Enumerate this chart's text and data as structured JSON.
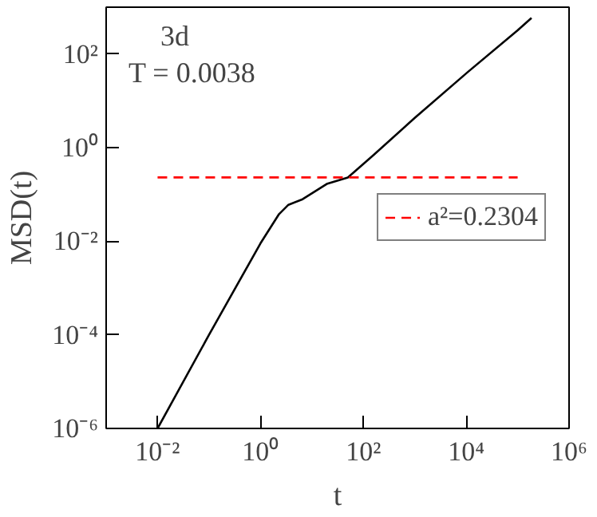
{
  "chart_data": {
    "type": "line",
    "xlabel": "t",
    "ylabel": "MSD(t)",
    "log": "xy",
    "xlim": [
      0.001,
      1000000
    ],
    "ylim": [
      1e-06,
      1000
    ],
    "xticks": [
      {
        "value": 0.01,
        "label": "10⁻²"
      },
      {
        "value": 1,
        "label": "10⁰"
      },
      {
        "value": 100,
        "label": "10²"
      },
      {
        "value": 10000,
        "label": "10⁴"
      },
      {
        "value": 1000000,
        "label": "10⁶"
      }
    ],
    "yticks": [
      {
        "value": 1e-06,
        "label": "10⁻⁶"
      },
      {
        "value": 0.0001,
        "label": "10⁻⁴"
      },
      {
        "value": 0.01,
        "label": "10⁻²"
      },
      {
        "value": 1,
        "label": "10⁰"
      },
      {
        "value": 100,
        "label": "10²"
      }
    ],
    "series": [
      {
        "color": "#000000",
        "line_style": "solid",
        "x": [
          0.01,
          0.1,
          1,
          2.3,
          3.5,
          6.6,
          20,
          50,
          160,
          1000,
          10700,
          100000,
          186000
        ],
        "values": [
          1e-06,
          0.0001,
          0.009,
          0.038,
          0.06,
          0.079,
          0.17,
          0.23,
          0.7,
          4.3,
          41,
          320,
          590
        ]
      },
      {
        "name": "a²=0.2304",
        "color": "#ff0000",
        "line_style": "dashed",
        "x": [
          0.01,
          100000
        ],
        "values": [
          0.2304,
          0.2304
        ]
      }
    ],
    "legend": "right",
    "grid": false,
    "annotations": [
      "3d",
      "T = 0.0038"
    ]
  }
}
